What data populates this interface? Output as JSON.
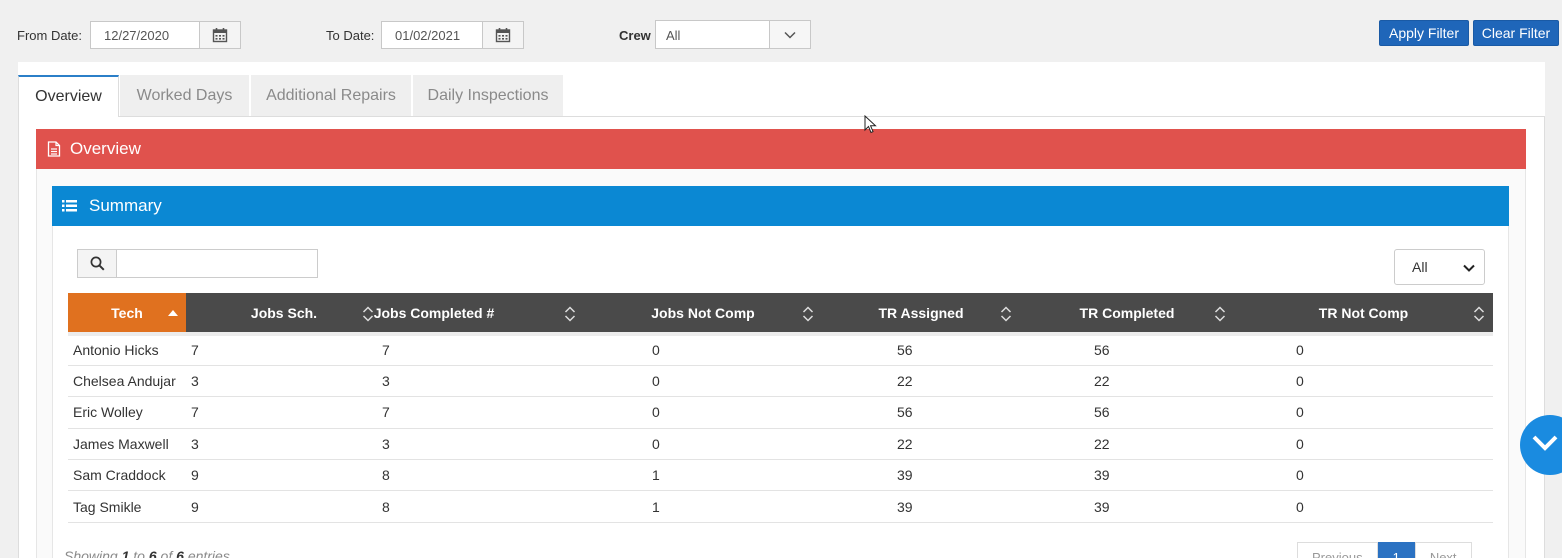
{
  "filters": {
    "from_label": "From Date:",
    "from_value": "12/27/2020",
    "to_label": "To Date:",
    "to_value": "01/02/2021",
    "crew_label": "Crew",
    "crew_value": "All",
    "apply_label": "Apply Filter",
    "clear_label": "Clear Filter"
  },
  "tabs": [
    "Overview",
    "Worked Days",
    "Additional Repairs",
    "Daily Inspections"
  ],
  "active_tab": "Overview",
  "overview": {
    "title": "Overview"
  },
  "summary": {
    "title": "Summary",
    "search_placeholder": "",
    "page_size": "All",
    "columns": [
      "Tech",
      "Jobs Sch.",
      "Jobs Completed #",
      "Jobs Not Comp",
      "TR Assigned",
      "TR Completed",
      "TR Not Comp"
    ],
    "sorted_column": "Tech",
    "rows": [
      [
        "Antonio Hicks",
        "7",
        "7",
        "0",
        "56",
        "56",
        "0"
      ],
      [
        "Chelsea Andujar",
        "3",
        "3",
        "0",
        "22",
        "22",
        "0"
      ],
      [
        "Eric Wolley",
        "7",
        "7",
        "0",
        "56",
        "56",
        "0"
      ],
      [
        "James Maxwell",
        "3",
        "3",
        "0",
        "22",
        "22",
        "0"
      ],
      [
        "Sam Craddock",
        "9",
        "8",
        "1",
        "39",
        "39",
        "0"
      ],
      [
        "Tag Smikle",
        "9",
        "8",
        "1",
        "39",
        "39",
        "0"
      ]
    ],
    "showing_prefix": "Showing",
    "showing_from": "1",
    "showing_to_word": "to",
    "showing_to": "6",
    "showing_of_word": "of",
    "showing_total": "6",
    "showing_suffix": "entries",
    "pager": {
      "previous": "Previous",
      "current": "1",
      "next": "Next"
    }
  },
  "colors": {
    "overview_red": "#e0524d",
    "summary_blue": "#0b88d3",
    "sorted_orange": "#e0711f",
    "header_dark": "#4a4a4a",
    "button_blue": "#1f66b9"
  },
  "icons": [
    "calendar-icon",
    "chevron-down-icon",
    "document-icon",
    "list-icon",
    "search-icon",
    "sort-icon",
    "sort-asc-icon",
    "scroll-down-icon",
    "cursor-icon"
  ]
}
